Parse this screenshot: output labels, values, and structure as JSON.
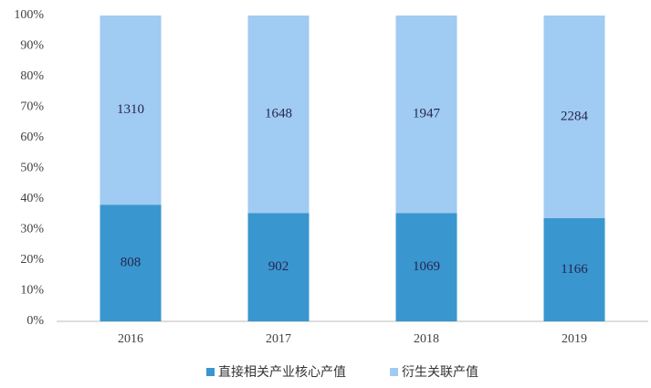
{
  "chart_data": {
    "type": "bar",
    "stack": "percent",
    "categories": [
      "2016",
      "2017",
      "2018",
      "2019"
    ],
    "series": [
      {
        "name": "直接相关产业核心产值",
        "color": "#3a96cf",
        "values": [
          808,
          902,
          1069,
          1166
        ]
      },
      {
        "name": "衍生关联产值",
        "color": "#a0cbf2",
        "values": [
          1310,
          1648,
          1947,
          2284
        ]
      }
    ],
    "ylim": [
      0,
      100
    ],
    "yticks": [
      {
        "value": 0,
        "label": "0%"
      },
      {
        "value": 10,
        "label": "10%"
      },
      {
        "value": 20,
        "label": "20%"
      },
      {
        "value": 30,
        "label": "30%"
      },
      {
        "value": 40,
        "label": "40%"
      },
      {
        "value": 50,
        "label": "50%"
      },
      {
        "value": 60,
        "label": "60%"
      },
      {
        "value": 70,
        "label": "70%"
      },
      {
        "value": 80,
        "label": "80%"
      },
      {
        "value": 90,
        "label": "90%"
      },
      {
        "value": 100,
        "label": "100%"
      }
    ],
    "grid": false,
    "legend": "bottom"
  }
}
